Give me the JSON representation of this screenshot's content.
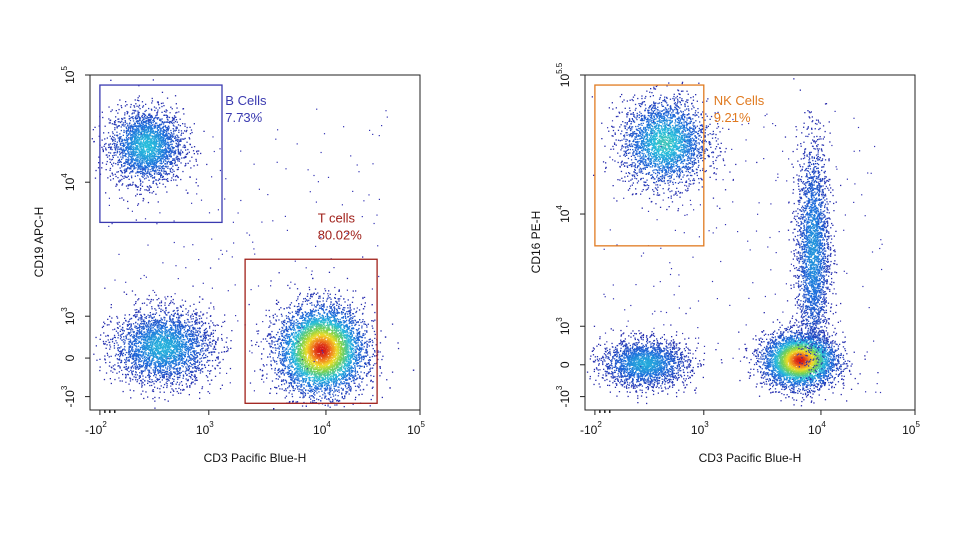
{
  "chart_data": [
    {
      "type": "scatter",
      "title": "",
      "xlabel": "CD3 Pacific Blue-H",
      "ylabel": "CD19 APC-H",
      "x_ticks": [
        {
          "base": "-10",
          "exp": "2"
        },
        {
          "base": "10",
          "exp": "3"
        },
        {
          "base": "10",
          "exp": "4"
        },
        {
          "base": "10",
          "exp": "5"
        }
      ],
      "y_ticks": [
        {
          "base": "-10",
          "exp": "3"
        },
        {
          "base": "0",
          "exp": ""
        },
        {
          "base": "10",
          "exp": "3"
        },
        {
          "base": "10",
          "exp": "4"
        },
        {
          "base": "10",
          "exp": "5"
        }
      ],
      "populations": [
        {
          "cx": 0.17,
          "cy": 0.79,
          "sx": 0.055,
          "sy": 0.055,
          "n": 2600,
          "peak": 0.45
        },
        {
          "cx": 0.7,
          "cy": 0.18,
          "sx": 0.065,
          "sy": 0.065,
          "n": 6000,
          "peak": 1.0
        },
        {
          "cx": 0.22,
          "cy": 0.19,
          "sx": 0.075,
          "sy": 0.055,
          "n": 3000,
          "peak": 0.42
        }
      ],
      "gates": [
        {
          "name": "B Cells",
          "percent": "7.73%",
          "color": "#3a3ab0",
          "x0": 0.03,
          "x1": 0.4,
          "y0": 0.56,
          "y1": 0.97
        },
        {
          "name": "T cells",
          "percent": "80.02%",
          "color": "#a0201a",
          "x0": 0.47,
          "x1": 0.87,
          "y0": 0.02,
          "y1": 0.45
        }
      ]
    },
    {
      "type": "scatter",
      "title": "",
      "xlabel": "CD3 Pacific Blue-H",
      "ylabel": "CD16 PE-H",
      "x_ticks": [
        {
          "base": "-10",
          "exp": "2"
        },
        {
          "base": "10",
          "exp": "3"
        },
        {
          "base": "10",
          "exp": "4"
        },
        {
          "base": "10",
          "exp": "5"
        }
      ],
      "y_ticks": [
        {
          "base": "-10",
          "exp": "3"
        },
        {
          "base": "0",
          "exp": ""
        },
        {
          "base": "10",
          "exp": "3"
        },
        {
          "base": "10",
          "exp": "4"
        },
        {
          "base": "10",
          "exp": "5.5"
        }
      ],
      "populations": [
        {
          "cx": 0.24,
          "cy": 0.8,
          "sx": 0.065,
          "sy": 0.065,
          "n": 2800,
          "peak": 0.5
        },
        {
          "cx": 0.18,
          "cy": 0.14,
          "sx": 0.065,
          "sy": 0.035,
          "n": 2200,
          "peak": 0.4
        },
        {
          "cx": 0.65,
          "cy": 0.15,
          "sx": 0.055,
          "sy": 0.04,
          "n": 4200,
          "peak": 1.0
        },
        {
          "cx": 0.69,
          "cy": 0.48,
          "sx": 0.025,
          "sy": 0.16,
          "n": 2600,
          "peak": 0.35
        }
      ],
      "gates": [
        {
          "name": "NK Cells",
          "percent": "9.21%",
          "color": "#e07a20",
          "x0": 0.03,
          "x1": 0.36,
          "y0": 0.49,
          "y1": 0.97
        }
      ]
    }
  ]
}
